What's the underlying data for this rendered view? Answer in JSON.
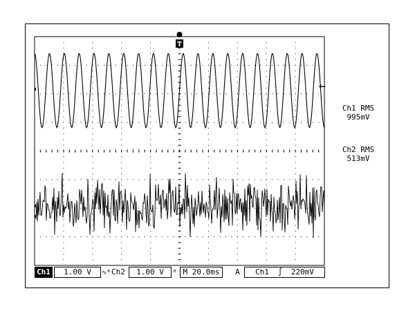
{
  "readouts": {
    "ch1_label": "Ch1 RMS",
    "ch1_value": "995mV",
    "ch2_label": "Ch2 RMS",
    "ch2_value": "513mV"
  },
  "status_bar": {
    "ch1_tag": "Ch1",
    "ch1_scale": "1.00 V",
    "ch1_coupling_icon": "ac-coupling-icon",
    "ch2_label": "Ch2",
    "ch2_scale": "1.00 V",
    "ch2_bw_icon": "bandwidth-limit-icon",
    "timebase": "M 20.0ms",
    "trigger_mode": "A",
    "trigger_source": "Ch1",
    "trigger_slope_glyph": "∫",
    "trigger_level": "220mV"
  },
  "markers": {
    "trigger_marker": "T",
    "trigger_level_arrow": "←"
  },
  "colors": {
    "trace": "#000000",
    "graticule": "#000000",
    "background": "#ffffff"
  },
  "chart_data": {
    "type": "line",
    "title": "",
    "xlabel": "",
    "ylabel": "",
    "grid": true,
    "series": [
      {
        "waveform": "sine",
        "cycles_on_screen": 19.5,
        "amplitude_div": 1.3
      },
      {
        "waveform": "noise",
        "amplitude_div": 0.8
      }
    ]
  }
}
